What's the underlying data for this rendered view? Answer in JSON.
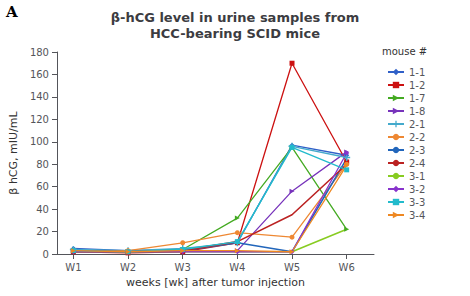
{
  "chart_data": {
    "type": "line",
    "title": "β-hCG level in urine samples from\nHCC-bearing SCID mice",
    "x_label": "weeks [wk] after tumor injection",
    "y_label": "β hCG, mIU/mL",
    "annotations": [
      "A"
    ],
    "legend_title": "mouse #",
    "x": [
      1,
      2,
      3,
      4,
      5,
      6
    ],
    "xlim": [
      0.7,
      6.5
    ],
    "xticks": [
      {
        "value": 1,
        "label": "W1"
      },
      {
        "value": 2,
        "label": "W2"
      },
      {
        "value": 3,
        "label": "W3"
      },
      {
        "value": 4,
        "label": "W4"
      },
      {
        "value": 5,
        "label": "W5"
      },
      {
        "value": 6,
        "label": "W6"
      }
    ],
    "ylim": [
      0,
      180
    ],
    "yticks": [
      0,
      20,
      40,
      60,
      80,
      100,
      120,
      140,
      160,
      180
    ],
    "grid": false,
    "legend": "right",
    "series": [
      {
        "name": "1-1",
        "color": "#3060c8",
        "marker": "diamond",
        "values": [
          5,
          3,
          4,
          10,
          97,
          88
        ]
      },
      {
        "name": "1-2",
        "color": "#cc1111",
        "marker": "square",
        "values": [
          2,
          1,
          2,
          10,
          170,
          82
        ]
      },
      {
        "name": "1-7",
        "color": "#44aa22",
        "marker": "triangle_right",
        "values": [
          3,
          2,
          4,
          32,
          95,
          22
        ]
      },
      {
        "name": "1-8",
        "color": "#7733bb",
        "marker": "triangle_right",
        "values": [
          3,
          2,
          3,
          3,
          56,
          91
        ]
      },
      {
        "name": "2-1",
        "color": "#44aacc",
        "marker": "plus",
        "values": [
          4,
          3,
          5,
          10,
          96,
          86
        ]
      },
      {
        "name": "2-2",
        "color": "#ee8833",
        "marker": "circle",
        "values": [
          3,
          3,
          10,
          19,
          15,
          80
        ]
      },
      {
        "name": "2-3",
        "color": "#2266bb",
        "marker": "none",
        "values": [
          3,
          2,
          3,
          10,
          2,
          85
        ]
      },
      {
        "name": "2-4",
        "color": "#bb2222",
        "marker": "none",
        "values": [
          2,
          2,
          3,
          11,
          35,
          80
        ]
      },
      {
        "name": "3-1",
        "color": "#88cc22",
        "marker": "none",
        "values": [
          2,
          2,
          2,
          2,
          2,
          22
        ]
      },
      {
        "name": "3-2",
        "color": "#8833cc",
        "marker": "diamond",
        "values": [
          2,
          2,
          2,
          2,
          2,
          90
        ]
      },
      {
        "name": "3-3",
        "color": "#22bbcc",
        "marker": "square",
        "values": [
          3,
          2,
          4,
          11,
          95,
          75
        ]
      },
      {
        "name": "3-4",
        "color": "#ee8822",
        "marker": "triangle_right",
        "values": [
          3,
          2,
          3,
          3,
          2,
          79
        ]
      }
    ]
  }
}
